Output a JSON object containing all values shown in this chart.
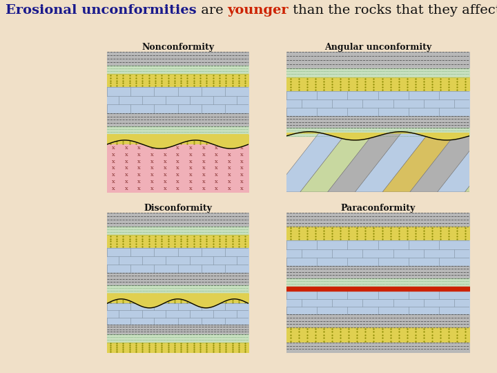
{
  "background_color": "#f0e0c8",
  "title_parts": [
    {
      "text": "Erosional unconformities",
      "color": "#1a1a8c",
      "bold": true
    },
    {
      "text": " are ",
      "color": "#111111",
      "bold": false
    },
    {
      "text": "younger",
      "color": "#cc2200",
      "bold": true
    },
    {
      "text": " than the rocks that they affect.",
      "color": "#111111",
      "bold": false
    }
  ],
  "title_fontsize": 14,
  "panels": [
    {
      "label": "Nonconformity",
      "col": 0,
      "row": 0
    },
    {
      "label": "Angular unconformity",
      "col": 1,
      "row": 0
    },
    {
      "label": "Disconformity",
      "col": 0,
      "row": 1
    },
    {
      "label": "Paraconformity",
      "col": 1,
      "row": 1
    }
  ],
  "colors": {
    "shale_gray": "#b8b8b8",
    "shale_line": "#555555",
    "sandstone": "#e0d050",
    "sandstone_dot": "#888800",
    "limestone": "#b8cce4",
    "limestone_line": "#8899aa",
    "green_shale": "#c8e0c0",
    "green_line": "#559955",
    "granite": "#f0b0b8",
    "granite_x": "#883333",
    "red_layer": "#cc2200",
    "angular_limestone": "#b8cce4",
    "angular_green": "#c8d8a0",
    "angular_sandstone": "#d8c060",
    "angular_gray": "#b0b0b0"
  }
}
